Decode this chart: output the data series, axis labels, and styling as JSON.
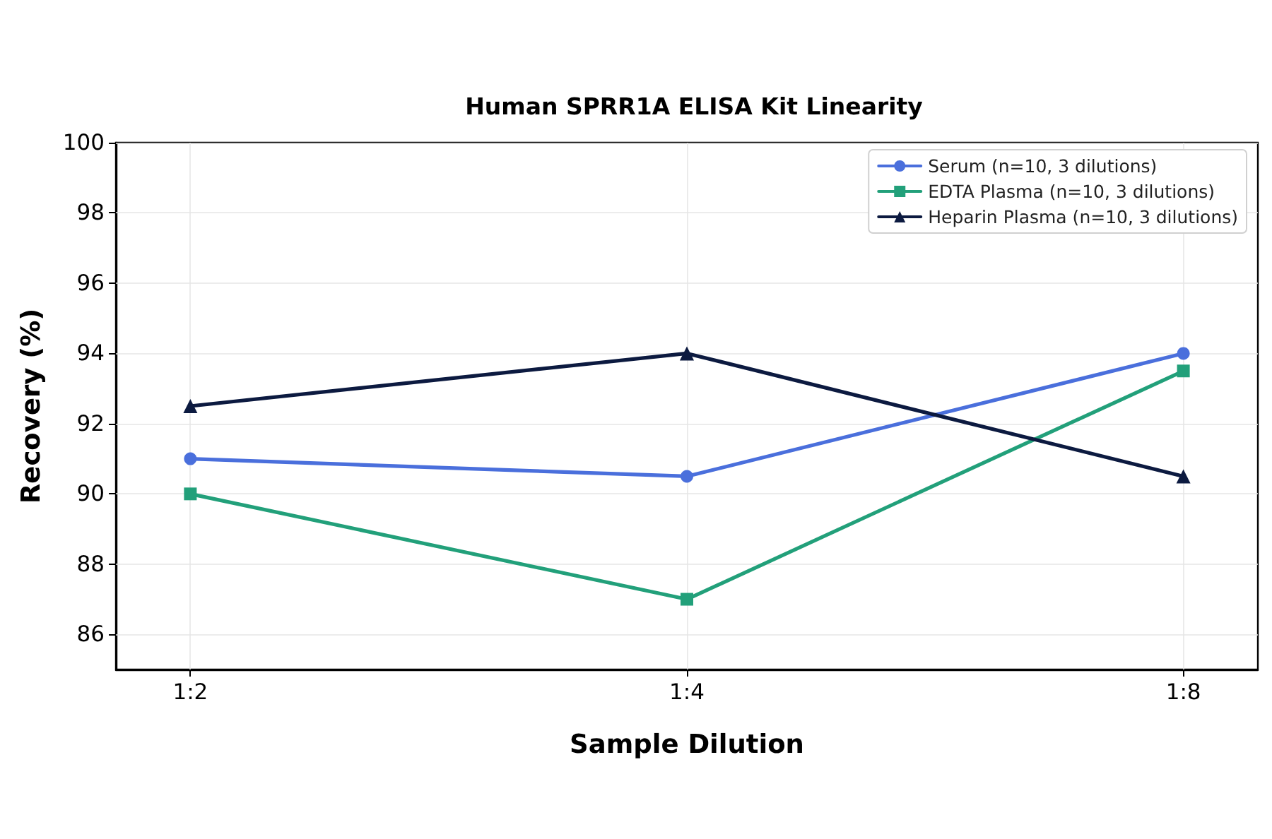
{
  "chart_data": {
    "type": "line",
    "title": "Human SPRR1A ELISA Kit Linearity",
    "xlabel": "Sample Dilution",
    "ylabel": "Recovery (%)",
    "categories": [
      "1:2",
      "1:4",
      "1:8"
    ],
    "series": [
      {
        "name": "Serum (n=10, 3 dilutions)",
        "color": "#4a6fdc",
        "marker": "circle",
        "values": [
          91,
          90.5,
          94
        ]
      },
      {
        "name": "EDTA Plasma (n=10, 3 dilutions)",
        "color": "#22a07a",
        "marker": "square",
        "values": [
          90,
          87,
          93.5
        ]
      },
      {
        "name": "Heparin Plasma (n=10, 3 dilutions)",
        "color": "#0c1a40",
        "marker": "triangle",
        "values": [
          92.5,
          94,
          90.5
        ]
      }
    ],
    "ylim": [
      85,
      100
    ],
    "yticks": [
      86,
      88,
      90,
      92,
      94,
      96,
      98,
      100
    ],
    "grid": true,
    "legend": "top right",
    "line_style": "solid"
  }
}
